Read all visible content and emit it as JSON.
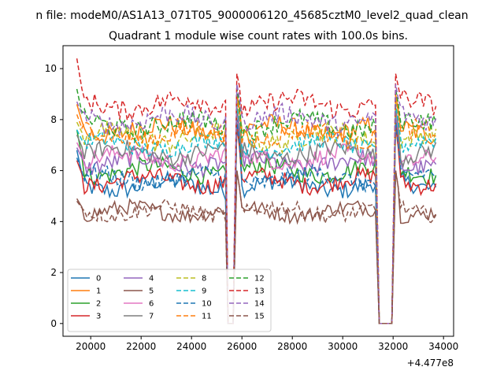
{
  "figure": {
    "suptitle": "n file: modeM0/AS1A13_071T05_9000006120_45685cztM0_level2_quad_clean",
    "title": "Quadrant 1 module wise count rates with 100.0s bins."
  },
  "chart_data": {
    "type": "line",
    "title": "Quadrant 1 module wise count rates with 100.0s bins.",
    "xlabel": "",
    "ylabel": "",
    "x_offset_label": "+4.477e8",
    "xlim": [
      18900,
      34400
    ],
    "ylim": [
      -0.5,
      10.9
    ],
    "xticks": [
      20000,
      22000,
      24000,
      26000,
      28000,
      30000,
      32000,
      34000
    ],
    "yticks": [
      0,
      2,
      4,
      6,
      8,
      10
    ],
    "xtick_labels": [
      "20000",
      "22000",
      "24000",
      "26000",
      "28000",
      "30000",
      "32000",
      "34000"
    ],
    "ytick_labels": [
      "0",
      "2",
      "4",
      "6",
      "8",
      "10"
    ],
    "grid": false,
    "legend_placement": "lower-left",
    "legend_columns": 4,
    "segments": [
      {
        "x_start": 19450,
        "x_end": 25300
      },
      {
        "x_start": 25800,
        "x_end": 31300
      },
      {
        "x_start": 32100,
        "x_end": 33650
      }
    ],
    "dips": [
      {
        "x_from": 25300,
        "x_bottom": 25450,
        "x_bottom_end": 25650,
        "x_to": 25800
      },
      {
        "x_from": 31300,
        "x_bottom": 31450,
        "x_bottom_end": 31950,
        "x_to": 32100
      }
    ],
    "series": [
      {
        "name": "0",
        "color": "#1f77b4",
        "dash": "solid",
        "level": 5.4,
        "start": 6.8,
        "noise": 0.35,
        "peak": 8.2
      },
      {
        "name": "1",
        "color": "#ff7f0e",
        "dash": "solid",
        "level": 7.6,
        "start": 8.6,
        "noise": 0.4,
        "peak": 9.0
      },
      {
        "name": "2",
        "color": "#2ca02c",
        "dash": "solid",
        "level": 6.0,
        "start": 7.6,
        "noise": 0.35,
        "peak": 8.0
      },
      {
        "name": "3",
        "color": "#d62728",
        "dash": "solid",
        "level": 5.6,
        "start": 6.4,
        "noise": 0.35,
        "peak": 7.8
      },
      {
        "name": "4",
        "color": "#9467bd",
        "dash": "solid",
        "level": 6.3,
        "start": 6.9,
        "noise": 0.35,
        "peak": 8.2
      },
      {
        "name": "5",
        "color": "#8c564b",
        "dash": "solid",
        "level": 4.4,
        "start": 4.9,
        "noise": 0.3,
        "peak": 6.0
      },
      {
        "name": "6",
        "color": "#e377c2",
        "dash": "solid",
        "level": 6.5,
        "start": 7.1,
        "noise": 0.35,
        "peak": 8.4
      },
      {
        "name": "7",
        "color": "#7f7f7f",
        "dash": "solid",
        "level": 6.7,
        "start": 7.4,
        "noise": 0.35,
        "peak": 8.5
      },
      {
        "name": "8",
        "color": "#bcbd22",
        "dash": "dashed",
        "level": 7.3,
        "start": 7.9,
        "noise": 0.4,
        "peak": 8.7
      },
      {
        "name": "9",
        "color": "#17becf",
        "dash": "dashed",
        "level": 7.0,
        "start": 7.6,
        "noise": 0.35,
        "peak": 8.6
      },
      {
        "name": "10",
        "color": "#1f77b4",
        "dash": "dashed",
        "level": 5.7,
        "start": 6.5,
        "noise": 0.35,
        "peak": 8.0
      },
      {
        "name": "11",
        "color": "#ff7f0e",
        "dash": "dashed",
        "level": 7.4,
        "start": 8.2,
        "noise": 0.4,
        "peak": 8.9
      },
      {
        "name": "12",
        "color": "#2ca02c",
        "dash": "dashed",
        "level": 7.8,
        "start": 9.2,
        "noise": 0.4,
        "peak": 9.2
      },
      {
        "name": "13",
        "color": "#d62728",
        "dash": "dashed",
        "level": 8.6,
        "start": 10.4,
        "noise": 0.4,
        "peak": 9.8
      },
      {
        "name": "14",
        "color": "#9467bd",
        "dash": "dashed",
        "level": 8.0,
        "start": 8.7,
        "noise": 0.4,
        "peak": 9.4
      },
      {
        "name": "15",
        "color": "#8c564b",
        "dash": "dashed",
        "level": 4.4,
        "start": 4.8,
        "noise": 0.3,
        "peak": 6.0
      }
    ]
  }
}
